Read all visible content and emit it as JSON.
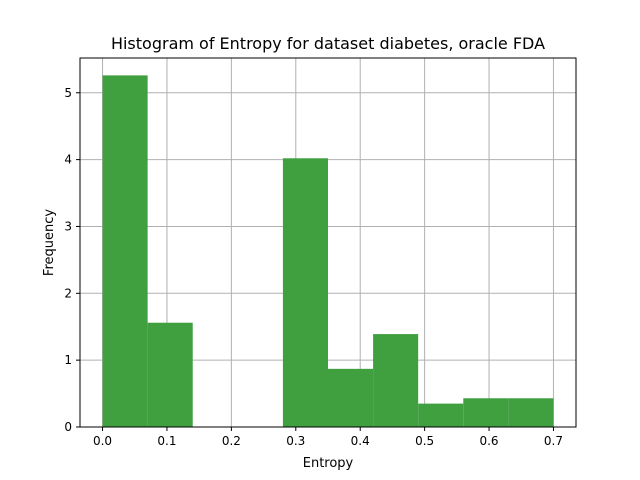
{
  "chart_data": {
    "type": "bar",
    "title": "Histogram of Entropy for dataset diabetes, oracle FDA",
    "xlabel": "Entropy",
    "ylabel": "Frequency",
    "xlim": [
      -0.035,
      0.735
    ],
    "ylim": [
      0,
      5.52
    ],
    "xticks": [
      0.0,
      0.1,
      0.2,
      0.3,
      0.4,
      0.5,
      0.6,
      0.7
    ],
    "xtick_labels": [
      "0.0",
      "0.1",
      "0.2",
      "0.3",
      "0.4",
      "0.5",
      "0.6",
      "0.7"
    ],
    "yticks": [
      0,
      1,
      2,
      3,
      4,
      5
    ],
    "ytick_labels": [
      "0",
      "1",
      "2",
      "3",
      "4",
      "5"
    ],
    "grid": true,
    "bar_color": "#40a040",
    "bins": [
      {
        "x0": 0.0,
        "x1": 0.07,
        "value": 5.26
      },
      {
        "x0": 0.07,
        "x1": 0.14,
        "value": 1.56
      },
      {
        "x0": 0.14,
        "x1": 0.21,
        "value": 0.0
      },
      {
        "x0": 0.21,
        "x1": 0.28,
        "value": 0.0
      },
      {
        "x0": 0.28,
        "x1": 0.35,
        "value": 4.02
      },
      {
        "x0": 0.35,
        "x1": 0.42,
        "value": 0.87
      },
      {
        "x0": 0.42,
        "x1": 0.49,
        "value": 1.39
      },
      {
        "x0": 0.49,
        "x1": 0.56,
        "value": 0.35
      },
      {
        "x0": 0.56,
        "x1": 0.63,
        "value": 0.43
      },
      {
        "x0": 0.63,
        "x1": 0.7,
        "value": 0.43
      }
    ]
  }
}
